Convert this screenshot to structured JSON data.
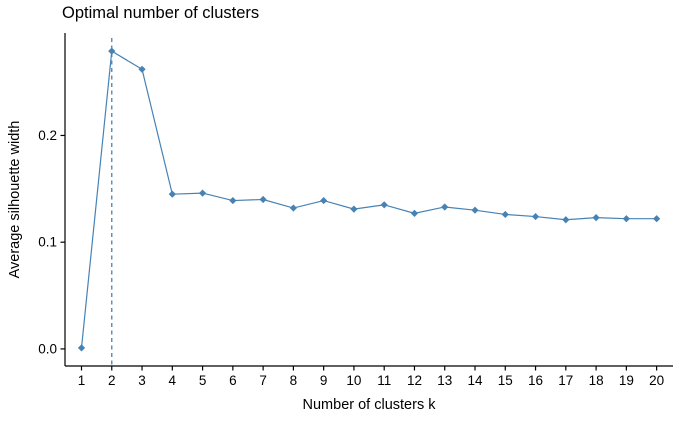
{
  "chart_data": {
    "type": "line",
    "title": "Optimal number of clusters",
    "xlabel": "Number of clusters k",
    "ylabel": "Average silhouette width",
    "x": [
      1,
      2,
      3,
      4,
      5,
      6,
      7,
      8,
      9,
      10,
      11,
      12,
      13,
      14,
      15,
      16,
      17,
      18,
      19,
      20
    ],
    "values": [
      0.001,
      0.279,
      0.262,
      0.145,
      0.146,
      0.139,
      0.14,
      0.132,
      0.139,
      0.131,
      0.135,
      0.127,
      0.133,
      0.13,
      0.126,
      0.124,
      0.121,
      0.123,
      0.122,
      0.122
    ],
    "yticks": [
      0.0,
      0.1,
      0.2
    ],
    "ytick_labels": [
      "0.0",
      "0.1",
      "0.2"
    ],
    "xtick_labels": [
      "1",
      "2",
      "3",
      "4",
      "5",
      "6",
      "7",
      "8",
      "9",
      "10",
      "11",
      "12",
      "13",
      "14",
      "15",
      "16",
      "17",
      "18",
      "19",
      "20"
    ],
    "ylim": [
      -0.016,
      0.296
    ],
    "vline_x": 2,
    "optimal_k": 2,
    "grid": false,
    "legend": "none",
    "marker": "diamond",
    "line_color": "#4682B4",
    "point_color": "#4682B4",
    "vline_color": "#4682B4",
    "axis_color": "#000000",
    "tick_text_color": "#000000"
  }
}
